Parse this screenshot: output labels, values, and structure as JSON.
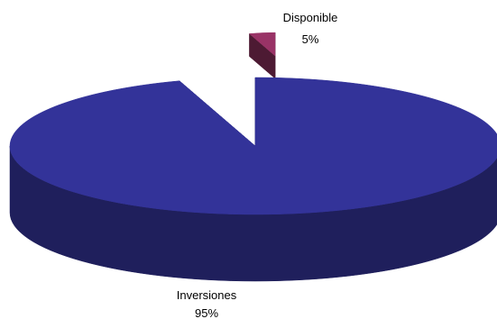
{
  "chart_data": {
    "type": "pie",
    "style": "3d-exploded",
    "categories": [
      "Inversiones",
      "Disponible"
    ],
    "values": [
      95,
      5
    ],
    "data_labels": [
      "95%",
      "5%"
    ],
    "colors": {
      "Inversiones": {
        "top": "#333399",
        "side": "#1f1f5c"
      },
      "Disponible": {
        "top": "#993366",
        "side": "#4d1a33"
      }
    },
    "title": "",
    "legend": "none"
  }
}
